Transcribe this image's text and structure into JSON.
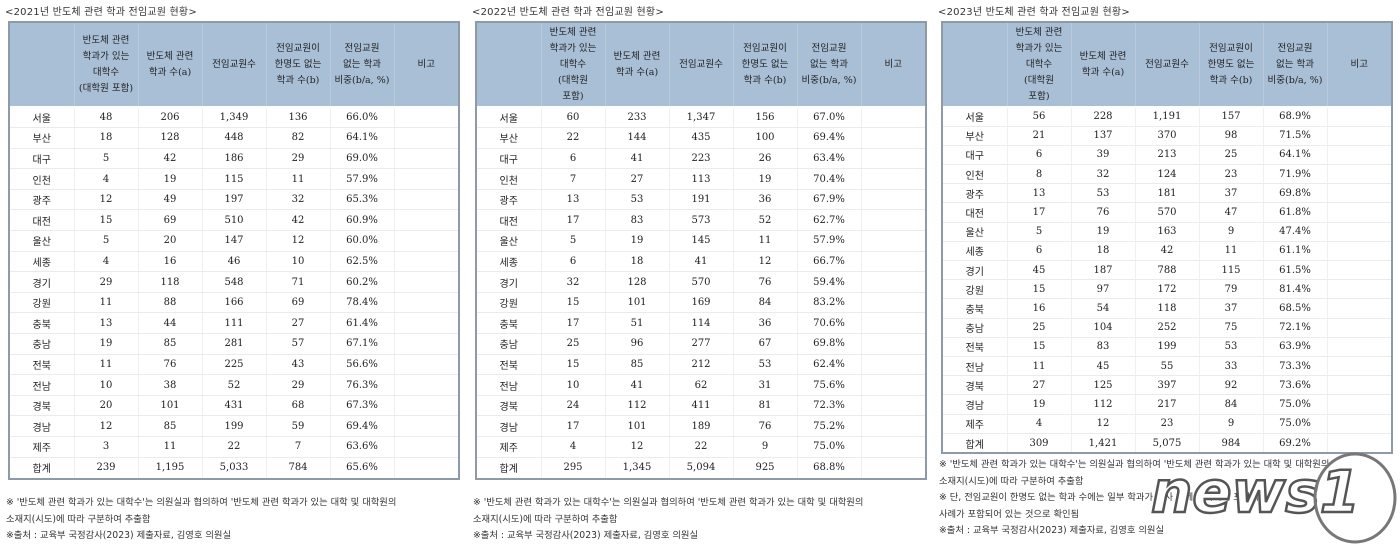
{
  "headers": [
    "",
    "반도체 관련\n학과가 있는\n대학수\n(대학원 포함)",
    "반도체 관련\n학과 수(a)",
    "전임교원수",
    "전임교원이\n한명도 없는\n학과 수(b)",
    "전임교원\n없는 학과\n비중(b/a, %)",
    "비고"
  ],
  "headers_alt": [
    "",
    "반도체 관련\n학과가 있는\n대학수\n(대학원\n포함)",
    "반도체 관련\n학과 수(a)",
    "전임교원수",
    "전임교원이\n한명도 없는\n학과 수(b)",
    "전임교원\n없는 학과\n비중(b/a, %)",
    "비고"
  ],
  "tables": [
    {
      "title": "<2021년 반도체 관련 학과 전임교원 현황>",
      "rows": [
        [
          "서울",
          "48",
          "206",
          "1,349",
          "136",
          "66.0%",
          ""
        ],
        [
          "부산",
          "18",
          "128",
          "448",
          "82",
          "64.1%",
          ""
        ],
        [
          "대구",
          "5",
          "42",
          "186",
          "29",
          "69.0%",
          ""
        ],
        [
          "인천",
          "4",
          "19",
          "115",
          "11",
          "57.9%",
          ""
        ],
        [
          "광주",
          "12",
          "49",
          "197",
          "32",
          "65.3%",
          ""
        ],
        [
          "대전",
          "15",
          "69",
          "510",
          "42",
          "60.9%",
          ""
        ],
        [
          "울산",
          "5",
          "20",
          "147",
          "12",
          "60.0%",
          ""
        ],
        [
          "세종",
          "4",
          "16",
          "46",
          "10",
          "62.5%",
          ""
        ],
        [
          "경기",
          "29",
          "118",
          "548",
          "71",
          "60.2%",
          ""
        ],
        [
          "강원",
          "11",
          "88",
          "166",
          "69",
          "78.4%",
          ""
        ],
        [
          "충북",
          "13",
          "44",
          "111",
          "27",
          "61.4%",
          ""
        ],
        [
          "충남",
          "19",
          "85",
          "281",
          "57",
          "67.1%",
          ""
        ],
        [
          "전북",
          "11",
          "76",
          "225",
          "43",
          "56.6%",
          ""
        ],
        [
          "전남",
          "10",
          "38",
          "52",
          "29",
          "76.3%",
          ""
        ],
        [
          "경북",
          "20",
          "101",
          "431",
          "68",
          "67.3%",
          ""
        ],
        [
          "경남",
          "12",
          "85",
          "199",
          "59",
          "69.4%",
          ""
        ],
        [
          "제주",
          "3",
          "11",
          "22",
          "7",
          "63.6%",
          ""
        ],
        [
          "합계",
          "239",
          "1,195",
          "5,033",
          "784",
          "65.6%",
          ""
        ]
      ],
      "notes": [
        "※ '반도체 관련 학과가 있는 대학수'는 의원실과 협의하여 '반도체 관련 학과가 있는 대학 및 대학원의",
        "소재지(시도)에 따라 구분하여 추출함",
        "※출처 : 교육부 국정감사(2023) 제출자료, 김영호 의원실"
      ]
    },
    {
      "title": "<2022년 반도체 관련 학과 전임교원 현황>",
      "rows": [
        [
          "서울",
          "60",
          "233",
          "1,347",
          "156",
          "67.0%",
          ""
        ],
        [
          "부산",
          "22",
          "144",
          "435",
          "100",
          "69.4%",
          ""
        ],
        [
          "대구",
          "6",
          "41",
          "223",
          "26",
          "63.4%",
          ""
        ],
        [
          "인천",
          "7",
          "27",
          "113",
          "19",
          "70.4%",
          ""
        ],
        [
          "광주",
          "13",
          "53",
          "191",
          "36",
          "67.9%",
          ""
        ],
        [
          "대전",
          "17",
          "83",
          "573",
          "52",
          "62.7%",
          ""
        ],
        [
          "울산",
          "5",
          "19",
          "145",
          "11",
          "57.9%",
          ""
        ],
        [
          "세종",
          "6",
          "18",
          "41",
          "12",
          "66.7%",
          ""
        ],
        [
          "경기",
          "32",
          "128",
          "570",
          "76",
          "59.4%",
          ""
        ],
        [
          "강원",
          "15",
          "101",
          "169",
          "84",
          "83.2%",
          ""
        ],
        [
          "충북",
          "17",
          "51",
          "114",
          "36",
          "70.6%",
          ""
        ],
        [
          "충남",
          "25",
          "96",
          "277",
          "67",
          "69.8%",
          ""
        ],
        [
          "전북",
          "15",
          "85",
          "212",
          "53",
          "62.4%",
          ""
        ],
        [
          "전남",
          "10",
          "41",
          "62",
          "31",
          "75.6%",
          ""
        ],
        [
          "경북",
          "24",
          "112",
          "411",
          "81",
          "72.3%",
          ""
        ],
        [
          "경남",
          "17",
          "101",
          "189",
          "76",
          "75.2%",
          ""
        ],
        [
          "제주",
          "4",
          "12",
          "22",
          "9",
          "75.0%",
          ""
        ],
        [
          "합계",
          "295",
          "1,345",
          "5,094",
          "925",
          "68.8%",
          ""
        ]
      ],
      "notes": [
        "※ '반도체 관련 학과가 있는 대학수'는 의원실과 협의하여 '반도체 관련 학과가 있는 대학 및 대학원의",
        "소재지(시도)에 따라 구분하여 추출함",
        "※출처 : 교육부 국정감사(2023) 제출자료, 김영호 의원실"
      ]
    },
    {
      "title": "<2023년 반도체 관련 학과 전임교원 현황>",
      "rows": [
        [
          "서울",
          "56",
          "228",
          "1,191",
          "157",
          "68.9%",
          ""
        ],
        [
          "부산",
          "21",
          "137",
          "370",
          "98",
          "71.5%",
          ""
        ],
        [
          "대구",
          "6",
          "39",
          "213",
          "25",
          "64.1%",
          ""
        ],
        [
          "인천",
          "8",
          "32",
          "124",
          "23",
          "71.9%",
          ""
        ],
        [
          "광주",
          "13",
          "53",
          "181",
          "37",
          "69.8%",
          ""
        ],
        [
          "대전",
          "17",
          "76",
          "570",
          "47",
          "61.8%",
          ""
        ],
        [
          "울산",
          "5",
          "19",
          "163",
          "9",
          "47.4%",
          ""
        ],
        [
          "세종",
          "6",
          "18",
          "42",
          "11",
          "61.1%",
          ""
        ],
        [
          "경기",
          "45",
          "187",
          "788",
          "115",
          "61.5%",
          ""
        ],
        [
          "강원",
          "15",
          "97",
          "172",
          "79",
          "81.4%",
          ""
        ],
        [
          "충북",
          "16",
          "54",
          "118",
          "37",
          "68.5%",
          ""
        ],
        [
          "충남",
          "25",
          "104",
          "252",
          "75",
          "72.1%",
          ""
        ],
        [
          "전북",
          "15",
          "83",
          "199",
          "53",
          "63.9%",
          ""
        ],
        [
          "전남",
          "11",
          "45",
          "55",
          "33",
          "73.3%",
          ""
        ],
        [
          "경북",
          "27",
          "125",
          "397",
          "92",
          "73.6%",
          ""
        ],
        [
          "경남",
          "19",
          "112",
          "217",
          "84",
          "75.0%",
          ""
        ],
        [
          "제주",
          "4",
          "12",
          "23",
          "9",
          "75.0%",
          ""
        ],
        [
          "합계",
          "309",
          "1,421",
          "5,075",
          "984",
          "69.2%",
          ""
        ]
      ],
      "notes": [
        "※ '반도체 관련 학과가 있는 대학수'는 의원실과 협의하여 '반도체 관련 학과가 있는 대학 및 대학원의",
        "소재지(시도)에 따라 구분하여 추출함",
        "※ 단, 전임교원이 한명도 없는 학과 수에는 일부 학과가 조사 곳에 중복되어 포함되는",
        "사례가 포함되어 있는 것으로 확인됨",
        "※출처 : 교육부 국정감사(2023) 제출자료, 김영호 의원실"
      ]
    }
  ],
  "watermark": {
    "text": "news1"
  },
  "colors": {
    "header_bg": "#a9bfd6",
    "border": "#8e9aa8"
  }
}
